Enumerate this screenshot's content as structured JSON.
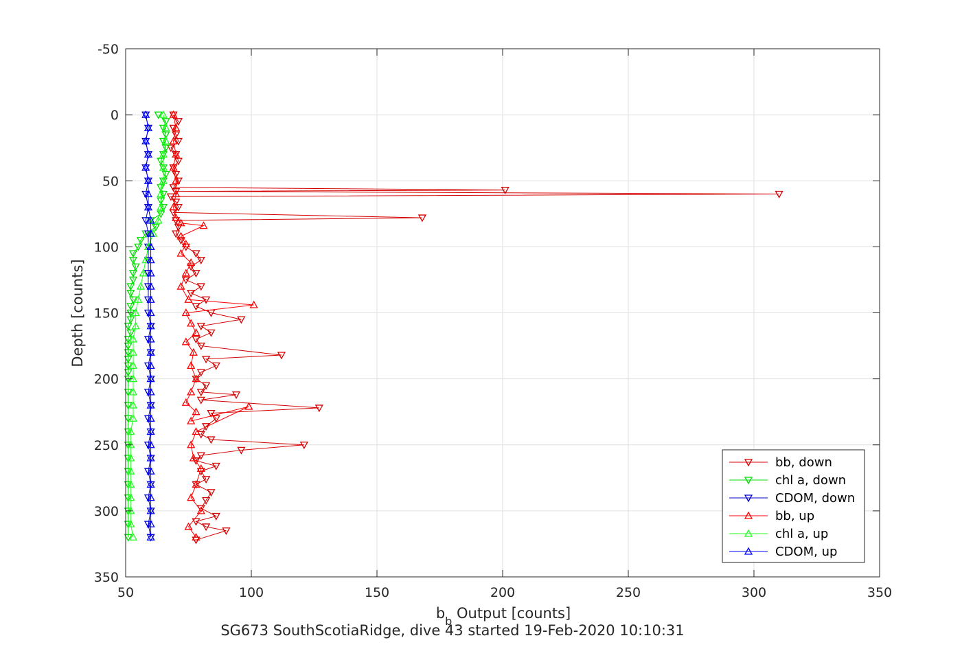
{
  "chart_data": {
    "type": "line",
    "xlabel_main": "b",
    "xlabel_sub": "b",
    "xlabel_rest": " Output [counts]",
    "ylabel": "Depth [counts]",
    "caption": "SG673 SouthScotiaRidge, dive 43 started 19-Feb-2020 10:10:31",
    "xlim": [
      50,
      350
    ],
    "ylim": [
      -50,
      350
    ],
    "y_reversed": true,
    "grid": true,
    "legend_position": "bottom-right",
    "x_ticks": [
      "50",
      "100",
      "150",
      "200",
      "250",
      "300",
      "350"
    ],
    "y_ticks": [
      "-50",
      "0",
      "50",
      "100",
      "150",
      "200",
      "250",
      "300",
      "350"
    ],
    "series": [
      {
        "name": "bb, down",
        "color": "#d40000",
        "marker": "triangle-down",
        "points": [
          [
            69,
            0
          ],
          [
            71,
            5
          ],
          [
            69,
            10
          ],
          [
            70,
            15
          ],
          [
            71,
            20
          ],
          [
            68,
            25
          ],
          [
            70,
            30
          ],
          [
            71,
            35
          ],
          [
            69,
            40
          ],
          [
            70,
            45
          ],
          [
            71,
            50
          ],
          [
            69,
            55
          ],
          [
            201,
            57
          ],
          [
            70,
            58
          ],
          [
            310,
            60
          ],
          [
            68,
            62
          ],
          [
            70,
            66
          ],
          [
            71,
            70
          ],
          [
            69,
            74
          ],
          [
            168,
            78
          ],
          [
            70,
            80
          ],
          [
            71,
            85
          ],
          [
            70,
            90
          ],
          [
            72,
            95
          ],
          [
            74,
            100
          ],
          [
            78,
            105
          ],
          [
            80,
            110
          ],
          [
            76,
            115
          ],
          [
            78,
            120
          ],
          [
            74,
            125
          ],
          [
            80,
            130
          ],
          [
            76,
            135
          ],
          [
            82,
            140
          ],
          [
            78,
            145
          ],
          [
            84,
            150
          ],
          [
            96,
            155
          ],
          [
            80,
            160
          ],
          [
            84,
            165
          ],
          [
            78,
            170
          ],
          [
            80,
            175
          ],
          [
            112,
            182
          ],
          [
            82,
            185
          ],
          [
            86,
            190
          ],
          [
            80,
            195
          ],
          [
            78,
            200
          ],
          [
            82,
            205
          ],
          [
            80,
            210
          ],
          [
            94,
            212
          ],
          [
            80,
            216
          ],
          [
            127,
            222
          ],
          [
            84,
            226
          ],
          [
            86,
            230
          ],
          [
            82,
            236
          ],
          [
            80,
            242
          ],
          [
            84,
            246
          ],
          [
            121,
            250
          ],
          [
            96,
            254
          ],
          [
            80,
            258
          ],
          [
            78,
            262
          ],
          [
            86,
            266
          ],
          [
            80,
            270
          ],
          [
            82,
            276
          ],
          [
            78,
            280
          ],
          [
            84,
            286
          ],
          [
            82,
            292
          ],
          [
            80,
            298
          ],
          [
            86,
            304
          ],
          [
            78,
            308
          ],
          [
            82,
            312
          ],
          [
            90,
            315
          ],
          [
            78,
            322
          ]
        ]
      },
      {
        "name": "chl a, down",
        "color": "#00dd00",
        "marker": "triangle-down",
        "points": [
          [
            63,
            0
          ],
          [
            66,
            5
          ],
          [
            65,
            10
          ],
          [
            66,
            15
          ],
          [
            65,
            20
          ],
          [
            66,
            25
          ],
          [
            65,
            30
          ],
          [
            64,
            35
          ],
          [
            65,
            40
          ],
          [
            66,
            45
          ],
          [
            65,
            50
          ],
          [
            64,
            55
          ],
          [
            65,
            60
          ],
          [
            64,
            65
          ],
          [
            65,
            70
          ],
          [
            64,
            75
          ],
          [
            60,
            80
          ],
          [
            62,
            85
          ],
          [
            58,
            90
          ],
          [
            56,
            95
          ],
          [
            55,
            100
          ],
          [
            53,
            105
          ],
          [
            53,
            110
          ],
          [
            54,
            115
          ],
          [
            53,
            120
          ],
          [
            53,
            125
          ],
          [
            52,
            130
          ],
          [
            52,
            135
          ],
          [
            53,
            140
          ],
          [
            52,
            145
          ],
          [
            52,
            150
          ],
          [
            52,
            155
          ],
          [
            51,
            160
          ],
          [
            52,
            165
          ],
          [
            51,
            170
          ],
          [
            51,
            175
          ],
          [
            51,
            180
          ],
          [
            51,
            185
          ],
          [
            51,
            190
          ],
          [
            51,
            195
          ],
          [
            51,
            200
          ],
          [
            51,
            210
          ],
          [
            51,
            220
          ],
          [
            51,
            230
          ],
          [
            51,
            240
          ],
          [
            51,
            250
          ],
          [
            51,
            260
          ],
          [
            51,
            270
          ],
          [
            51,
            280
          ],
          [
            51,
            290
          ],
          [
            51,
            300
          ],
          [
            51,
            310
          ],
          [
            51,
            320
          ]
        ]
      },
      {
        "name": "CDOM, down",
        "color": "#0000cc",
        "marker": "triangle-down",
        "points": [
          [
            58,
            0
          ],
          [
            59,
            10
          ],
          [
            58,
            20
          ],
          [
            59,
            30
          ],
          [
            58,
            40
          ],
          [
            59,
            50
          ],
          [
            58,
            60
          ],
          [
            59,
            70
          ],
          [
            58,
            80
          ],
          [
            59,
            90
          ],
          [
            59,
            100
          ],
          [
            59,
            110
          ],
          [
            59,
            120
          ],
          [
            59,
            130
          ],
          [
            59,
            140
          ],
          [
            59,
            150
          ],
          [
            60,
            160
          ],
          [
            59,
            170
          ],
          [
            60,
            180
          ],
          [
            59,
            190
          ],
          [
            60,
            200
          ],
          [
            59,
            210
          ],
          [
            60,
            220
          ],
          [
            59,
            230
          ],
          [
            60,
            240
          ],
          [
            59,
            250
          ],
          [
            60,
            260
          ],
          [
            59,
            270
          ],
          [
            60,
            280
          ],
          [
            59,
            290
          ],
          [
            60,
            300
          ],
          [
            59,
            310
          ],
          [
            60,
            320
          ]
        ]
      },
      {
        "name": "bb, up",
        "color": "#ff0000",
        "marker": "triangle-up",
        "points": [
          [
            78,
            320
          ],
          [
            75,
            312
          ],
          [
            80,
            300
          ],
          [
            76,
            290
          ],
          [
            78,
            280
          ],
          [
            80,
            268
          ],
          [
            77,
            260
          ],
          [
            76,
            250
          ],
          [
            78,
            240
          ],
          [
            99,
            221
          ],
          [
            76,
            232
          ],
          [
            78,
            225
          ],
          [
            74,
            218
          ],
          [
            76,
            210
          ],
          [
            78,
            200
          ],
          [
            76,
            190
          ],
          [
            77,
            180
          ],
          [
            74,
            172
          ],
          [
            78,
            165
          ],
          [
            76,
            158
          ],
          [
            74,
            150
          ],
          [
            101,
            144
          ],
          [
            75,
            140
          ],
          [
            72,
            130
          ],
          [
            74,
            120
          ],
          [
            76,
            112
          ],
          [
            72,
            105
          ],
          [
            74,
            98
          ],
          [
            72,
            92
          ],
          [
            81,
            84
          ],
          [
            72,
            82
          ],
          [
            70,
            78
          ],
          [
            69,
            70
          ],
          [
            70,
            60
          ],
          [
            70,
            50
          ],
          [
            69,
            40
          ],
          [
            70,
            30
          ],
          [
            69,
            20
          ],
          [
            70,
            10
          ],
          [
            69,
            0
          ]
        ]
      },
      {
        "name": "chl a, up",
        "color": "#22ff22",
        "marker": "triangle-up",
        "points": [
          [
            53,
            320
          ],
          [
            52,
            310
          ],
          [
            52,
            300
          ],
          [
            52,
            290
          ],
          [
            52,
            280
          ],
          [
            52,
            270
          ],
          [
            52,
            260
          ],
          [
            52,
            250
          ],
          [
            52,
            240
          ],
          [
            53,
            230
          ],
          [
            53,
            220
          ],
          [
            53,
            210
          ],
          [
            53,
            200
          ],
          [
            53,
            190
          ],
          [
            53,
            180
          ],
          [
            53,
            170
          ],
          [
            54,
            160
          ],
          [
            54,
            150
          ],
          [
            55,
            140
          ],
          [
            56,
            130
          ],
          [
            57,
            120
          ],
          [
            58,
            110
          ],
          [
            59,
            100
          ],
          [
            61,
            90
          ],
          [
            63,
            80
          ],
          [
            64,
            70
          ],
          [
            64,
            60
          ],
          [
            65,
            50
          ],
          [
            65,
            40
          ],
          [
            65,
            30
          ],
          [
            66,
            20
          ],
          [
            66,
            10
          ],
          [
            65,
            0
          ]
        ]
      },
      {
        "name": "CDOM, up",
        "color": "#0000ff",
        "marker": "triangle-up",
        "points": [
          [
            60,
            320
          ],
          [
            60,
            310
          ],
          [
            60,
            300
          ],
          [
            60,
            290
          ],
          [
            60,
            280
          ],
          [
            60,
            270
          ],
          [
            60,
            260
          ],
          [
            60,
            250
          ],
          [
            60,
            240
          ],
          [
            60,
            230
          ],
          [
            60,
            220
          ],
          [
            60,
            210
          ],
          [
            60,
            200
          ],
          [
            60,
            190
          ],
          [
            60,
            180
          ],
          [
            60,
            170
          ],
          [
            60,
            160
          ],
          [
            60,
            150
          ],
          [
            60,
            140
          ],
          [
            60,
            130
          ],
          [
            60,
            120
          ],
          [
            60,
            110
          ],
          [
            60,
            100
          ],
          [
            60,
            90
          ],
          [
            60,
            80
          ],
          [
            59,
            70
          ],
          [
            59,
            60
          ],
          [
            59,
            50
          ],
          [
            58,
            40
          ],
          [
            59,
            30
          ],
          [
            58,
            20
          ],
          [
            59,
            10
          ],
          [
            58,
            0
          ]
        ]
      }
    ]
  }
}
